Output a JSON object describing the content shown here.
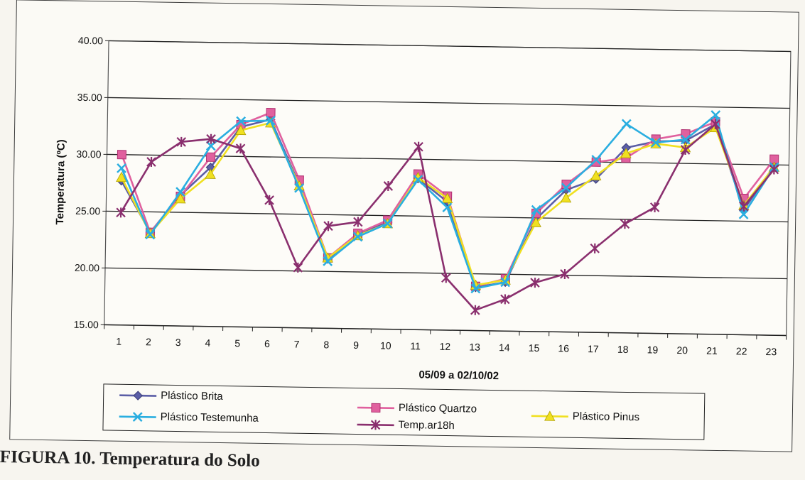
{
  "chart_data": {
    "type": "line",
    "xlabel": "05/09 a 02/10/02",
    "ylabel": "Temperatura (ºC)",
    "ylim": [
      15,
      40
    ],
    "yticks": [
      "15.00",
      "20.00",
      "25.00",
      "30.00",
      "35.00",
      "40.00"
    ],
    "categories": [
      "1",
      "2",
      "3",
      "4",
      "5",
      "6",
      "7",
      "8",
      "9",
      "10",
      "11",
      "12",
      "13",
      "14",
      "15",
      "16",
      "17",
      "18",
      "19",
      "20",
      "21",
      "22",
      "23"
    ],
    "grid": "horizontal",
    "legend": "bottom",
    "series": [
      {
        "name": "Plástico Brita",
        "color": "#5b5ea6",
        "marker": "diamond",
        "values": [
          27.7,
          23.2,
          26.5,
          29.0,
          32.6,
          33.3,
          27.6,
          21.1,
          23.3,
          24.4,
          28.3,
          26.3,
          18.8,
          19.3,
          24.9,
          27.5,
          28.5,
          31.3,
          31.9,
          32.0,
          33.5,
          26.0,
          29.9
        ]
      },
      {
        "name": "Plástico Quartzo",
        "color": "#e0609e",
        "marker": "square",
        "values": [
          30.0,
          23.2,
          26.4,
          29.9,
          32.8,
          33.9,
          28.0,
          21.2,
          23.4,
          24.6,
          28.7,
          26.8,
          18.9,
          19.6,
          25.4,
          28.0,
          30.0,
          30.4,
          32.1,
          32.6,
          33.7,
          27.0,
          30.5
        ]
      },
      {
        "name": "Plástico Pinus",
        "color": "#f0e020",
        "marker": "triangle",
        "values": [
          28.0,
          23.1,
          26.2,
          28.4,
          32.3,
          33.0,
          27.5,
          21.2,
          23.2,
          24.3,
          28.4,
          26.6,
          19.0,
          19.5,
          24.6,
          26.8,
          28.8,
          30.8,
          31.7,
          31.4,
          33.2,
          26.4,
          29.8
        ]
      },
      {
        "name": "Plástico Testemunha",
        "color": "#2aaee0",
        "marker": "x",
        "values": [
          28.8,
          23.0,
          26.8,
          30.9,
          33.1,
          33.2,
          27.3,
          20.9,
          23.1,
          24.3,
          28.2,
          25.8,
          18.7,
          19.3,
          25.7,
          27.7,
          30.2,
          33.4,
          31.8,
          32.1,
          34.3,
          25.6,
          29.8
        ]
      },
      {
        "name": "Temp.ar18h",
        "color": "#8a2f6e",
        "marker": "star",
        "values": [
          24.9,
          29.4,
          31.2,
          31.5,
          30.7,
          26.2,
          20.3,
          24.0,
          24.4,
          27.6,
          31.1,
          19.6,
          16.8,
          17.8,
          19.3,
          20.1,
          22.4,
          24.6,
          26.1,
          31.2,
          33.5,
          26.3,
          29.6
        ]
      }
    ]
  },
  "caption": "FIGURA 10. Temperatura do Solo"
}
